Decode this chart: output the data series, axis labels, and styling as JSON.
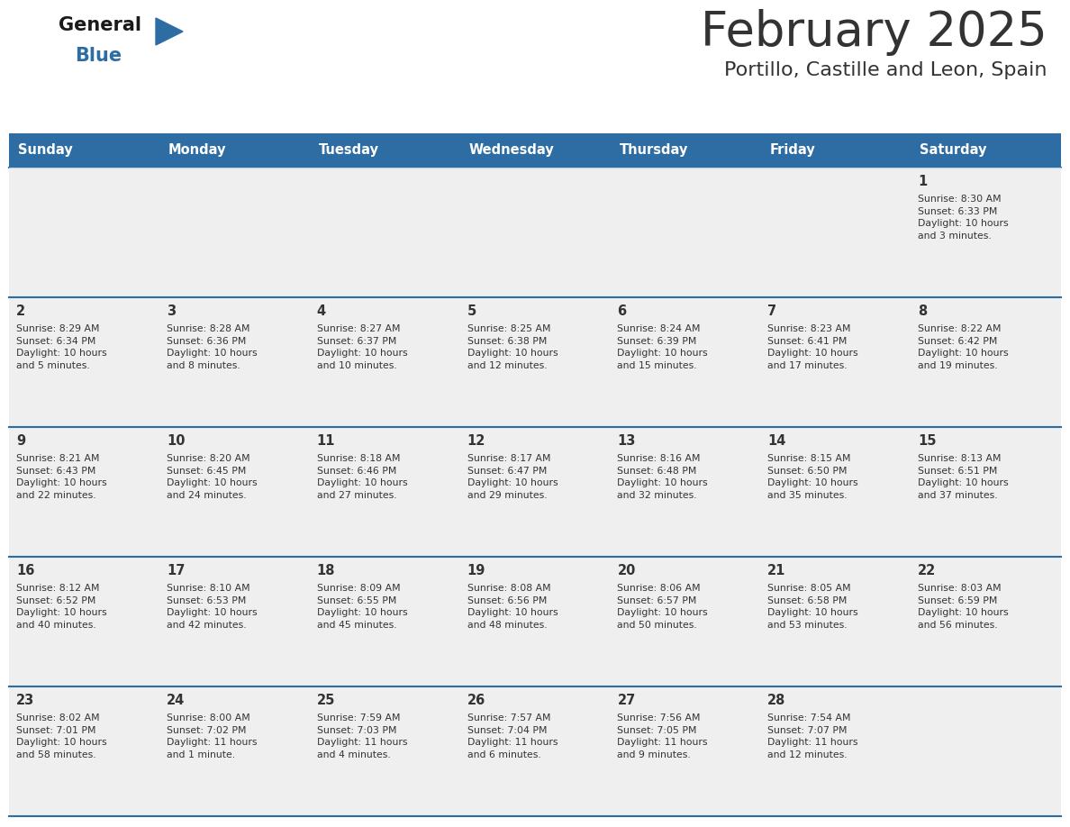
{
  "title": "February 2025",
  "subtitle": "Portillo, Castille and Leon, Spain",
  "header_color": "#2e6da4",
  "header_text_color": "#ffffff",
  "cell_bg": "#efefef",
  "border_color": "#2e6da4",
  "text_color": "#333333",
  "days_of_week": [
    "Sunday",
    "Monday",
    "Tuesday",
    "Wednesday",
    "Thursday",
    "Friday",
    "Saturday"
  ],
  "weeks": [
    [
      {
        "day": null,
        "info": null
      },
      {
        "day": null,
        "info": null
      },
      {
        "day": null,
        "info": null
      },
      {
        "day": null,
        "info": null
      },
      {
        "day": null,
        "info": null
      },
      {
        "day": null,
        "info": null
      },
      {
        "day": 1,
        "info": "Sunrise: 8:30 AM\nSunset: 6:33 PM\nDaylight: 10 hours\nand 3 minutes."
      }
    ],
    [
      {
        "day": 2,
        "info": "Sunrise: 8:29 AM\nSunset: 6:34 PM\nDaylight: 10 hours\nand 5 minutes."
      },
      {
        "day": 3,
        "info": "Sunrise: 8:28 AM\nSunset: 6:36 PM\nDaylight: 10 hours\nand 8 minutes."
      },
      {
        "day": 4,
        "info": "Sunrise: 8:27 AM\nSunset: 6:37 PM\nDaylight: 10 hours\nand 10 minutes."
      },
      {
        "day": 5,
        "info": "Sunrise: 8:25 AM\nSunset: 6:38 PM\nDaylight: 10 hours\nand 12 minutes."
      },
      {
        "day": 6,
        "info": "Sunrise: 8:24 AM\nSunset: 6:39 PM\nDaylight: 10 hours\nand 15 minutes."
      },
      {
        "day": 7,
        "info": "Sunrise: 8:23 AM\nSunset: 6:41 PM\nDaylight: 10 hours\nand 17 minutes."
      },
      {
        "day": 8,
        "info": "Sunrise: 8:22 AM\nSunset: 6:42 PM\nDaylight: 10 hours\nand 19 minutes."
      }
    ],
    [
      {
        "day": 9,
        "info": "Sunrise: 8:21 AM\nSunset: 6:43 PM\nDaylight: 10 hours\nand 22 minutes."
      },
      {
        "day": 10,
        "info": "Sunrise: 8:20 AM\nSunset: 6:45 PM\nDaylight: 10 hours\nand 24 minutes."
      },
      {
        "day": 11,
        "info": "Sunrise: 8:18 AM\nSunset: 6:46 PM\nDaylight: 10 hours\nand 27 minutes."
      },
      {
        "day": 12,
        "info": "Sunrise: 8:17 AM\nSunset: 6:47 PM\nDaylight: 10 hours\nand 29 minutes."
      },
      {
        "day": 13,
        "info": "Sunrise: 8:16 AM\nSunset: 6:48 PM\nDaylight: 10 hours\nand 32 minutes."
      },
      {
        "day": 14,
        "info": "Sunrise: 8:15 AM\nSunset: 6:50 PM\nDaylight: 10 hours\nand 35 minutes."
      },
      {
        "day": 15,
        "info": "Sunrise: 8:13 AM\nSunset: 6:51 PM\nDaylight: 10 hours\nand 37 minutes."
      }
    ],
    [
      {
        "day": 16,
        "info": "Sunrise: 8:12 AM\nSunset: 6:52 PM\nDaylight: 10 hours\nand 40 minutes."
      },
      {
        "day": 17,
        "info": "Sunrise: 8:10 AM\nSunset: 6:53 PM\nDaylight: 10 hours\nand 42 minutes."
      },
      {
        "day": 18,
        "info": "Sunrise: 8:09 AM\nSunset: 6:55 PM\nDaylight: 10 hours\nand 45 minutes."
      },
      {
        "day": 19,
        "info": "Sunrise: 8:08 AM\nSunset: 6:56 PM\nDaylight: 10 hours\nand 48 minutes."
      },
      {
        "day": 20,
        "info": "Sunrise: 8:06 AM\nSunset: 6:57 PM\nDaylight: 10 hours\nand 50 minutes."
      },
      {
        "day": 21,
        "info": "Sunrise: 8:05 AM\nSunset: 6:58 PM\nDaylight: 10 hours\nand 53 minutes."
      },
      {
        "day": 22,
        "info": "Sunrise: 8:03 AM\nSunset: 6:59 PM\nDaylight: 10 hours\nand 56 minutes."
      }
    ],
    [
      {
        "day": 23,
        "info": "Sunrise: 8:02 AM\nSunset: 7:01 PM\nDaylight: 10 hours\nand 58 minutes."
      },
      {
        "day": 24,
        "info": "Sunrise: 8:00 AM\nSunset: 7:02 PM\nDaylight: 11 hours\nand 1 minute."
      },
      {
        "day": 25,
        "info": "Sunrise: 7:59 AM\nSunset: 7:03 PM\nDaylight: 11 hours\nand 4 minutes."
      },
      {
        "day": 26,
        "info": "Sunrise: 7:57 AM\nSunset: 7:04 PM\nDaylight: 11 hours\nand 6 minutes."
      },
      {
        "day": 27,
        "info": "Sunrise: 7:56 AM\nSunset: 7:05 PM\nDaylight: 11 hours\nand 9 minutes."
      },
      {
        "day": 28,
        "info": "Sunrise: 7:54 AM\nSunset: 7:07 PM\nDaylight: 11 hours\nand 12 minutes."
      },
      {
        "day": null,
        "info": null
      }
    ]
  ],
  "logo_color_general": "#1a1a1a",
  "logo_color_blue": "#2e6da4",
  "fig_width": 11.88,
  "fig_height": 9.18,
  "dpi": 100
}
